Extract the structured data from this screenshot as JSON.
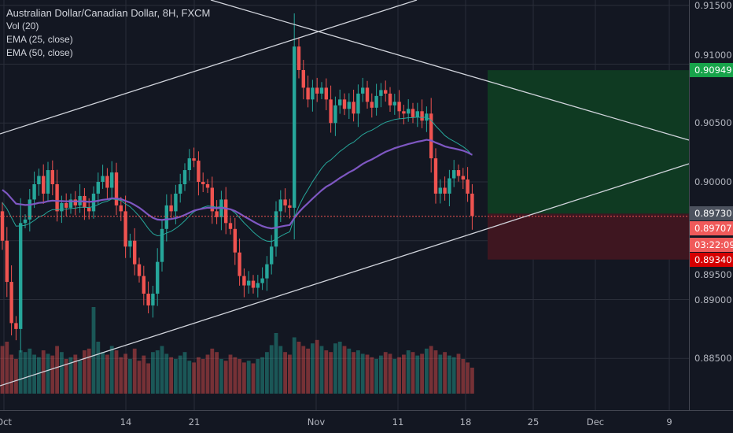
{
  "legend": {
    "title": "Australian Dollar/Canadian Dollar, 8H, FXCM",
    "vol": "Vol (20)",
    "ema25": "EMA (25, close)",
    "ema50": "EMA (50, close)"
  },
  "colors": {
    "background": "#131722",
    "up": "#26a69a",
    "down": "#ef5350",
    "ema25": "#26a69a",
    "ema50": "#7e57c2",
    "target_zone": "#0f3a22",
    "stop_zone": "#3e1620"
  },
  "price_tags": {
    "target": "0.90949",
    "entry": "0.89730",
    "last": "0.89707",
    "countdown": "03:22:09",
    "stop": "0.89340"
  },
  "chart_data": {
    "type": "candlestick",
    "title": "Australian Dollar/Canadian Dollar, 8H, FXCM",
    "ylim": [
      0.8815,
      0.9155
    ],
    "y_ticks": [
      "0.91500",
      "0.91000",
      "0.90500",
      "0.90000",
      "0.89500",
      "0.89000",
      "0.88500"
    ],
    "x_ticks": [
      "Oct",
      "14",
      "21",
      "Nov",
      "11",
      "18",
      "25",
      "Dec",
      "9"
    ],
    "first_open": 0.8975,
    "closes": [
      0.895,
      0.8915,
      0.888,
      0.8875,
      0.8965,
      0.8968,
      0.8985,
      0.8998,
      0.9005,
      0.899,
      0.901,
      0.8998,
      0.8975,
      0.8982,
      0.8978,
      0.8985,
      0.898,
      0.8988,
      0.8978,
      0.8975,
      0.899,
      0.9,
      0.9005,
      0.8995,
      0.9008,
      0.898,
      0.8975,
      0.8945,
      0.895,
      0.893,
      0.892,
      0.8905,
      0.8895,
      0.8905,
      0.8932,
      0.896,
      0.898,
      0.8975,
      0.899,
      0.8998,
      0.901,
      0.902,
      0.9018,
      0.9,
      0.8998,
      0.8995,
      0.8975,
      0.897,
      0.8985,
      0.8965,
      0.896,
      0.894,
      0.892,
      0.8912,
      0.8916,
      0.891,
      0.8914,
      0.8918,
      0.893,
      0.8945,
      0.8975,
      0.8985,
      0.898,
      0.8978,
      0.9115,
      0.9095,
      0.908,
      0.907,
      0.908,
      0.9075,
      0.908,
      0.907,
      0.905,
      0.9065,
      0.907,
      0.9062,
      0.9068,
      0.9058,
      0.9075,
      0.908,
      0.9068,
      0.9063,
      0.9073,
      0.9078,
      0.9075,
      0.9065,
      0.9068,
      0.906,
      0.9058,
      0.9062,
      0.9055,
      0.906,
      0.9052,
      0.9058,
      0.902,
      0.899,
      0.8995,
      0.899,
      0.9003,
      0.901,
      0.9005,
      0.9002,
      0.899,
      0.8971
    ],
    "volumes": [
      55,
      60,
      45,
      40,
      50,
      48,
      52,
      45,
      42,
      50,
      46,
      44,
      55,
      48,
      40,
      42,
      45,
      38,
      50,
      52,
      100,
      60,
      48,
      45,
      55,
      50,
      42,
      46,
      40,
      52,
      38,
      44,
      35,
      48,
      50,
      55,
      46,
      42,
      40,
      44,
      48,
      38,
      36,
      42,
      40,
      45,
      52,
      48,
      40,
      38,
      45,
      42,
      40,
      36,
      38,
      35,
      40,
      42,
      48,
      56,
      70,
      55,
      48,
      45,
      65,
      60,
      55,
      52,
      58,
      62,
      55,
      50,
      48,
      58,
      60,
      55,
      52,
      48,
      50,
      46,
      45,
      42,
      40,
      44,
      48,
      46,
      40,
      42,
      45,
      50,
      48,
      44,
      46,
      52,
      55,
      50,
      45,
      48,
      44,
      42,
      46,
      40,
      36,
      30
    ],
    "ema25_seed": 0.8985,
    "ema50_seed": 0.8995,
    "position": {
      "entry": 0.8973,
      "target": 0.90949,
      "stop": 0.8934
    },
    "last_price": 0.89707
  }
}
